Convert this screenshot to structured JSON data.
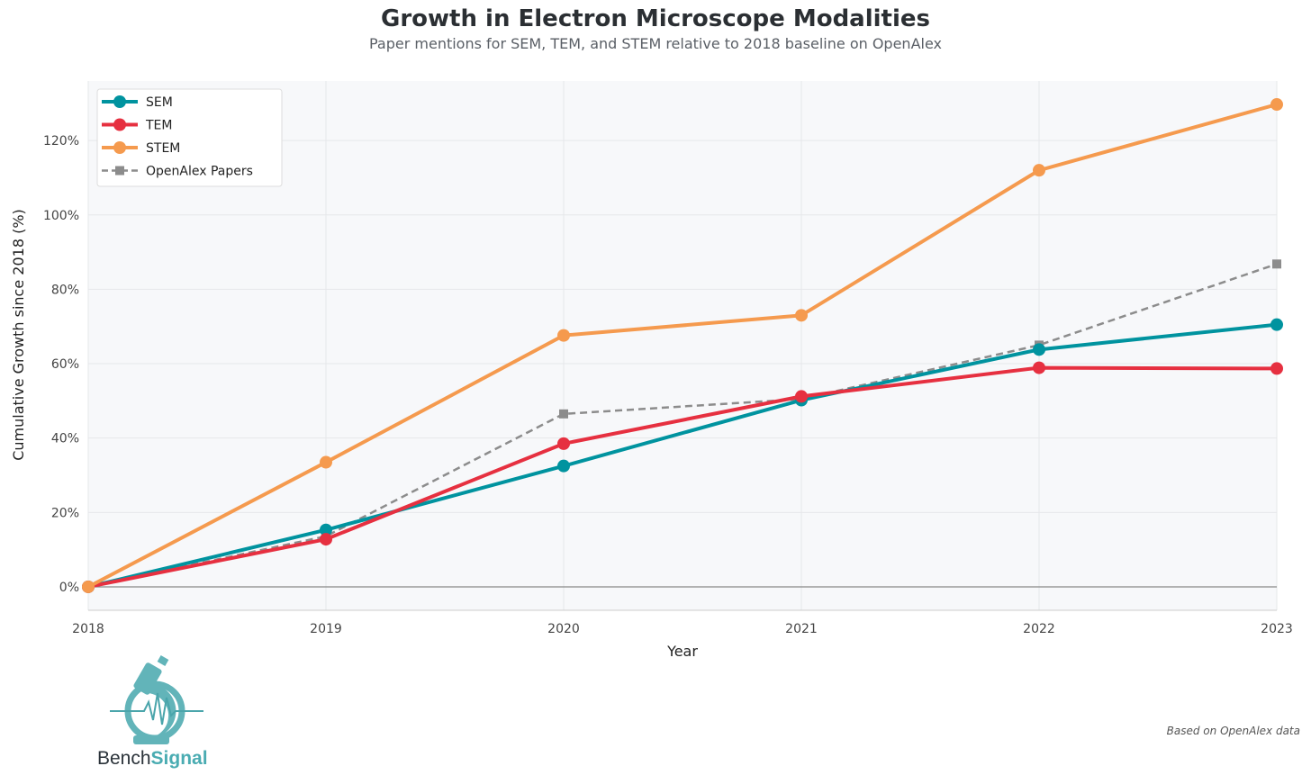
{
  "chart_data": {
    "type": "line",
    "title": "Growth in Electron Microscope Modalities",
    "subtitle": "Paper mentions for SEM, TEM, and STEM relative to 2018 baseline on OpenAlex",
    "xlabel": "Year",
    "ylabel": "Cumulative Growth since 2018 (%)",
    "x": [
      2018,
      2019,
      2020,
      2021,
      2022,
      2023
    ],
    "x_tick_labels": [
      "2018",
      "2019",
      "2020",
      "2021",
      "2022",
      "2023"
    ],
    "ylim": [
      -6.3,
      136
    ],
    "y_ticks": [
      0,
      20,
      40,
      60,
      80,
      100,
      120
    ],
    "y_tick_labels": [
      "0%",
      "20%",
      "40%",
      "60%",
      "80%",
      "100%",
      "120%"
    ],
    "grid": true,
    "legend_placement": "top-left",
    "series": [
      {
        "name": "SEM",
        "color": "#00939f",
        "style": "solid",
        "marker": "circle",
        "values": [
          0,
          15.3,
          32.5,
          50.2,
          63.8,
          70.5
        ]
      },
      {
        "name": "TEM",
        "color": "#e63040",
        "style": "solid",
        "marker": "circle",
        "values": [
          0,
          12.8,
          38.5,
          51.2,
          58.9,
          58.7
        ]
      },
      {
        "name": "STEM",
        "color": "#f59a4e",
        "style": "solid",
        "marker": "circle",
        "values": [
          0,
          33.5,
          67.6,
          73.0,
          112.0,
          129.7
        ]
      },
      {
        "name": "OpenAlex Papers",
        "color": "#8c8c8c",
        "style": "dashed",
        "marker": "square",
        "values": [
          0,
          13.6,
          46.5,
          50.5,
          65.0,
          86.8
        ]
      }
    ]
  },
  "logo": {
    "part1": "Bench",
    "part2": "Signal"
  },
  "credit": "Based on OpenAlex data"
}
